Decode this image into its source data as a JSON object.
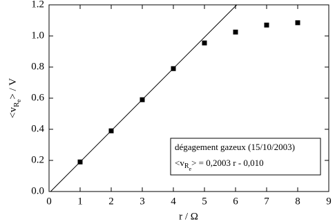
{
  "chart_data": {
    "type": "scatter",
    "x_label": "r / Ω",
    "y_label": [
      "<v",
      "R",
      "e",
      "> / V"
    ],
    "annotation_title": "dégagement gazeux (15/10/2003)",
    "annotation_fit": [
      "<v",
      "R",
      "e",
      "> = 0,2003 r - 0,010"
    ],
    "x": [
      1,
      2,
      3,
      4,
      5,
      6,
      7,
      8
    ],
    "values": [
      0.19,
      0.39,
      0.59,
      0.79,
      0.955,
      1.025,
      1.07,
      1.085
    ],
    "color": "#000000",
    "fit": {
      "x": [
        0.05,
        6.04
      ],
      "values": [
        0,
        1.2
      ]
    },
    "xlim": [
      0,
      9
    ],
    "ylim": [
      0,
      1.2
    ],
    "xticks": [
      0,
      1,
      2,
      3,
      4,
      5,
      6,
      7,
      8,
      9
    ],
    "yticks": [
      {
        "value": 0,
        "label": "0.0"
      },
      {
        "value": 0.2,
        "label": "0.2"
      },
      {
        "value": 0.4,
        "label": "0.4"
      },
      {
        "value": 0.6,
        "label": "0.6"
      },
      {
        "value": 0.8,
        "label": "0.8"
      },
      {
        "value": 1,
        "label": "1.0"
      },
      {
        "value": 1.2,
        "label": "1.2"
      }
    ]
  }
}
